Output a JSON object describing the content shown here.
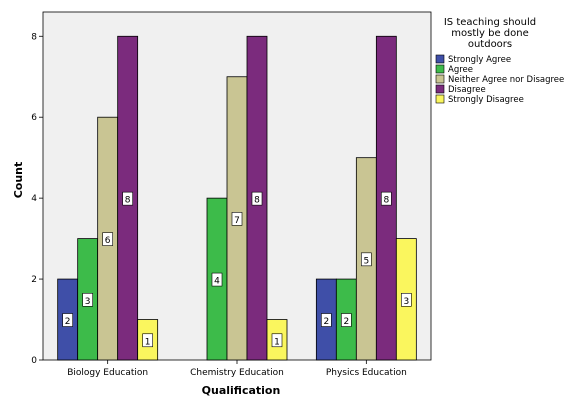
{
  "chart_data": {
    "type": "bar",
    "categories": [
      "Biology Education",
      "Chemistry Education",
      "Physics Education"
    ],
    "series": [
      {
        "name": "Strongly Agree",
        "values": [
          2,
          0,
          2
        ],
        "color": "#3f4fa8"
      },
      {
        "name": "Agree",
        "values": [
          3,
          4,
          2
        ],
        "color": "#3dbb4a"
      },
      {
        "name": "Neither Agree nor Disagree",
        "values": [
          6,
          7,
          5
        ],
        "color": "#c9c593"
      },
      {
        "name": "Disagree",
        "values": [
          8,
          8,
          8
        ],
        "color": "#7b2b7d"
      },
      {
        "name": "Strongly Disagree",
        "values": [
          1,
          1,
          3
        ],
        "color": "#faf65e"
      }
    ],
    "xlabel": "Qualification",
    "ylabel": "Count",
    "ylim": [
      0,
      8.6
    ],
    "yticks": [
      0,
      2,
      4,
      6,
      8
    ],
    "legend_title": "IS teaching should mostly be done outdoors",
    "legend_title_lines": [
      "IS teaching should",
      "mostly be done",
      "outdoors"
    ],
    "legend_position": "right",
    "data_labels": true,
    "plot_background": "#f0f0f0",
    "grid": false
  }
}
